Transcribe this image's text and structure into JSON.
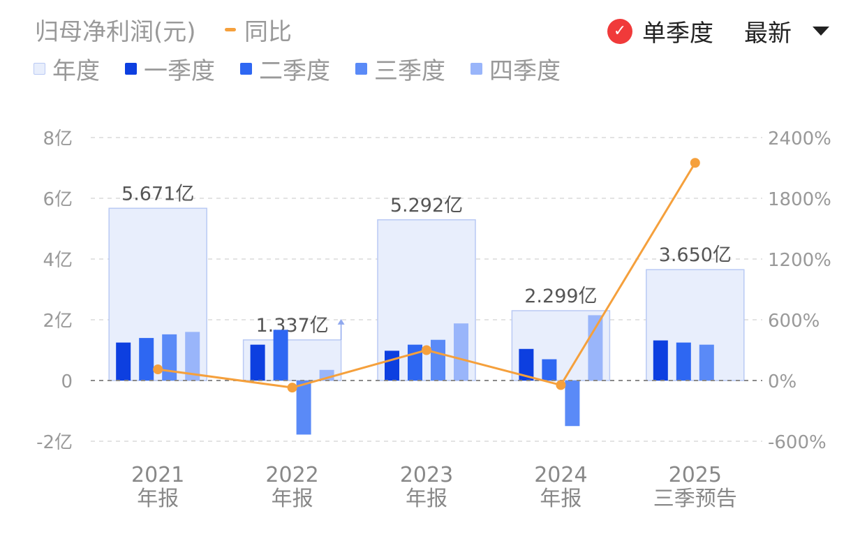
{
  "header": {
    "title": "归母净利润(元)",
    "yoy_label": "同比",
    "toggle_label": "单季度",
    "select_label": "最新"
  },
  "legend": [
    {
      "label": "年度",
      "color": "#e8eefc"
    },
    {
      "label": "一季度",
      "color": "#0d3fe0"
    },
    {
      "label": "二季度",
      "color": "#2e67f2"
    },
    {
      "label": "三季度",
      "color": "#5a8af7"
    },
    {
      "label": "四季度",
      "color": "#99b5fa"
    }
  ],
  "chart_data": {
    "type": "bar",
    "categories": [
      {
        "year": "2021",
        "sub": "年报"
      },
      {
        "year": "2022",
        "sub": "年报"
      },
      {
        "year": "2023",
        "sub": "年报"
      },
      {
        "year": "2024",
        "sub": "年报"
      },
      {
        "year": "2025",
        "sub": "三季预告"
      }
    ],
    "annual": [
      5.671,
      1.337,
      5.292,
      2.299,
      3.65
    ],
    "annual_labels": [
      "5.671亿",
      "1.337亿",
      "5.292亿",
      "2.299亿",
      "3.650亿"
    ],
    "series": [
      {
        "name": "一季度",
        "color": "#0d3fe0",
        "values": [
          1.25,
          1.18,
          0.98,
          1.04,
          1.32
        ]
      },
      {
        "name": "二季度",
        "color": "#2e67f2",
        "values": [
          1.4,
          1.67,
          1.18,
          0.7,
          1.25
        ]
      },
      {
        "name": "三季度",
        "color": "#5a8af7",
        "values": [
          1.52,
          -1.78,
          1.34,
          -1.5,
          1.18
        ]
      },
      {
        "name": "四季度",
        "color": "#99b5fa",
        "values": [
          1.6,
          0.35,
          1.88,
          2.15,
          null
        ]
      }
    ],
    "yoy": {
      "name": "同比",
      "color": "#f5a03c",
      "values": [
        110,
        -70,
        300,
        -45,
        2150
      ]
    },
    "y_left": {
      "min": -2,
      "max": 8,
      "ticks": [
        -2,
        0,
        2,
        4,
        6,
        8
      ],
      "tick_labels": [
        "-2亿",
        "0",
        "2亿",
        "4亿",
        "6亿",
        "8亿"
      ]
    },
    "y_right": {
      "min": -600,
      "max": 2400,
      "ticks": [
        -600,
        0,
        600,
        1200,
        1800,
        2400
      ],
      "tick_labels": [
        "-600%",
        "0%",
        "600%",
        "1200%",
        "1800%",
        "2400%"
      ]
    },
    "grid": true
  }
}
